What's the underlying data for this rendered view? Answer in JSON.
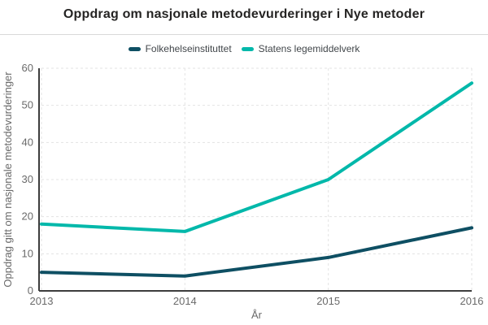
{
  "title": "Oppdrag om nasjonale metodevurderinger i Nye metoder",
  "colors": {
    "series_folkehelseinstituttet": "#0e4f63",
    "series_statens_legemiddelverk": "#01b8aa",
    "axis_line": "#3d3d3d",
    "gridline": "#e3e3e3",
    "tick_text": "#6a6a6a",
    "title_text": "#252423"
  },
  "legend": {
    "items": [
      {
        "label": "Folkehelseinstituttet",
        "color": "#0e4f63"
      },
      {
        "label": "Statens legemiddelverk",
        "color": "#01b8aa"
      }
    ]
  },
  "chart_data": {
    "type": "line",
    "title": "Oppdrag om nasjonale metodevurderinger i Nye metoder",
    "x": [
      2013,
      2014,
      2015,
      2016
    ],
    "series": [
      {
        "name": "Folkehelseinstituttet",
        "color": "#0e4f63",
        "values": [
          5,
          4,
          9,
          17
        ]
      },
      {
        "name": "Statens legemiddelverk",
        "color": "#01b8aa",
        "values": [
          18,
          16,
          30,
          56
        ]
      }
    ],
    "xlabel": "År",
    "ylabel": "Oppdrag gitt om nasjonale metodevurderinger",
    "ylim": [
      0,
      60
    ],
    "yticks": [
      0,
      10,
      20,
      30,
      40,
      50,
      60
    ],
    "grid": "dashed-both-axes",
    "legend_position": "top-center",
    "line_width": 4
  }
}
